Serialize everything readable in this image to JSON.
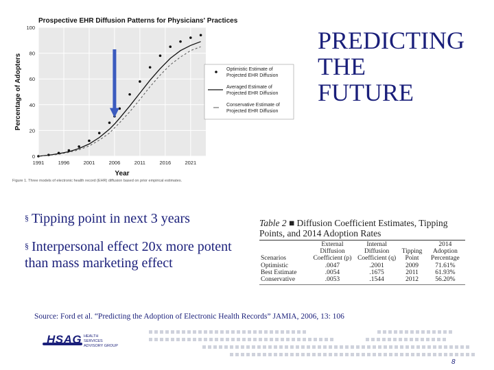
{
  "slide": {
    "title_lines": [
      "PREDICTING",
      "THE",
      "FUTURE"
    ],
    "bullets": [
      "Tipping point in next 3 years",
      "Interpersonal effect 20x more potent than mass marketing effect"
    ],
    "bullet_marker": "§",
    "source": "Source: Ford et al. “Predicting the Adoption of Electronic Health Records” JAMIA, 2006, 13: 106",
    "page_number": "8",
    "logo": {
      "name": "HSAG",
      "tagline": "HEALTH SERVICES ADVISORY GROUP"
    },
    "colors": {
      "text": "#1a1f7a",
      "arrow": "#3b5bbf",
      "chart_bg": "#e9e9e9",
      "decor": "#cfd2dc"
    }
  },
  "chart_data": {
    "type": "line",
    "title": "Prospective EHR Diffusion Patterns for Physicians' Practices",
    "xlabel": "Year",
    "ylabel": "Percentage of Adopters",
    "caption": "Figure 1. Three models of electronic health record (EHR) diffusion based on prior empirical estimates.",
    "x_ticks": [
      "1991",
      "1996",
      "2001",
      "2006",
      "2011",
      "2016",
      "2021"
    ],
    "y_ticks": [
      0,
      20,
      40,
      60,
      80,
      100
    ],
    "xlim": [
      1991,
      2024
    ],
    "ylim": [
      0,
      100
    ],
    "grid": true,
    "legend_position": "center-right",
    "annotation": {
      "type": "arrow",
      "x": 2006,
      "y_from": 83,
      "y_to": 30
    },
    "series": [
      {
        "name": "Optimistic Estimate of Projected EHR Diffusion",
        "style": "dotted-markers",
        "x": [
          1991,
          1993,
          1995,
          1997,
          1999,
          2001,
          2003,
          2005,
          2006,
          2007,
          2009,
          2011,
          2013,
          2015,
          2017,
          2019,
          2021,
          2023
        ],
        "y": [
          0,
          1,
          2.5,
          4.5,
          7.5,
          12,
          18,
          26,
          31,
          37,
          48,
          58,
          69,
          78,
          85,
          89,
          92,
          94
        ]
      },
      {
        "name": "Averaged Estimate of Projected EHR Diffusion",
        "style": "solid",
        "x": [
          1991,
          1993,
          1995,
          1997,
          1999,
          2001,
          2003,
          2005,
          2006,
          2007,
          2009,
          2011,
          2013,
          2015,
          2017,
          2019,
          2021,
          2023
        ],
        "y": [
          0,
          0.8,
          2,
          3.5,
          6,
          9.5,
          14.5,
          21,
          25,
          29.5,
          39,
          49,
          59,
          68,
          76,
          82,
          86,
          89
        ]
      },
      {
        "name": "Conservative Estimate of Projected EHR Diffusion",
        "style": "dashed",
        "x": [
          1991,
          1993,
          1995,
          1997,
          1999,
          2001,
          2003,
          2005,
          2006,
          2007,
          2009,
          2011,
          2013,
          2015,
          2017,
          2019,
          2021,
          2023
        ],
        "y": [
          0,
          0.6,
          1.5,
          3,
          5,
          8,
          12.5,
          18,
          22,
          26,
          34.5,
          44,
          54,
          63,
          71,
          77,
          82,
          85
        ]
      }
    ]
  },
  "table": {
    "title_prefix": "Table 2",
    "title_rest": "Diffusion Coefficient Estimates, Tipping Points, and 2014 Adoption Rates",
    "columns": [
      "Scenarios",
      "External Diffusion Coefficient (p)",
      "Internal Diffusion Coefficient (q)",
      "Tipping Point",
      "2014 Adoption Percentage"
    ],
    "rows": [
      [
        "Optimistic",
        ".0047",
        ".2001",
        "2009",
        "71.61%"
      ],
      [
        "Best Estimate",
        ".0054",
        ".1675",
        "2011",
        "61.93%"
      ],
      [
        "Conservative",
        ".0053",
        ".1544",
        "2012",
        "56.20%"
      ]
    ]
  }
}
